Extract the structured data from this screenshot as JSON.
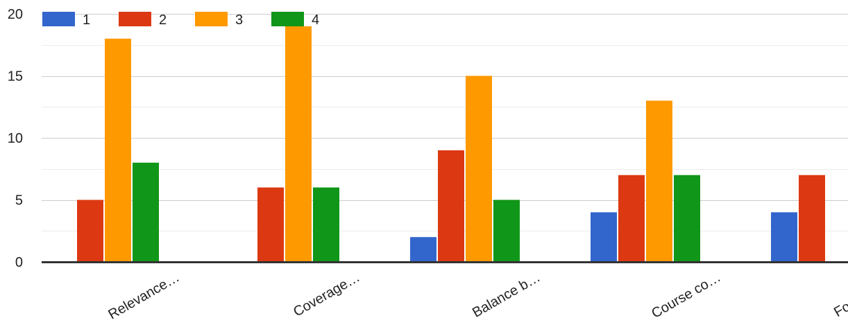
{
  "chart_data": {
    "type": "bar",
    "categories": [
      "Relevance…",
      "Coverage…",
      "Balance b…",
      "Course co…",
      "Focus of t…"
    ],
    "series": [
      {
        "name": "1",
        "color": "#3366cc",
        "values": [
          0,
          0,
          2,
          4,
          4
        ]
      },
      {
        "name": "2",
        "color": "#dc3912",
        "values": [
          5,
          6,
          9,
          7,
          7
        ]
      },
      {
        "name": "3",
        "color": "#ff9900",
        "values": [
          18,
          19,
          15,
          13,
          null
        ]
      },
      {
        "name": "4",
        "color": "#109618",
        "values": [
          8,
          6,
          5,
          7,
          null
        ]
      }
    ],
    "yticks": [
      0,
      5,
      10,
      15,
      20
    ],
    "ylim": [
      0,
      20
    ],
    "grid": true,
    "legend_position": "top-left",
    "title": "",
    "xlabel": "",
    "ylabel": ""
  }
}
